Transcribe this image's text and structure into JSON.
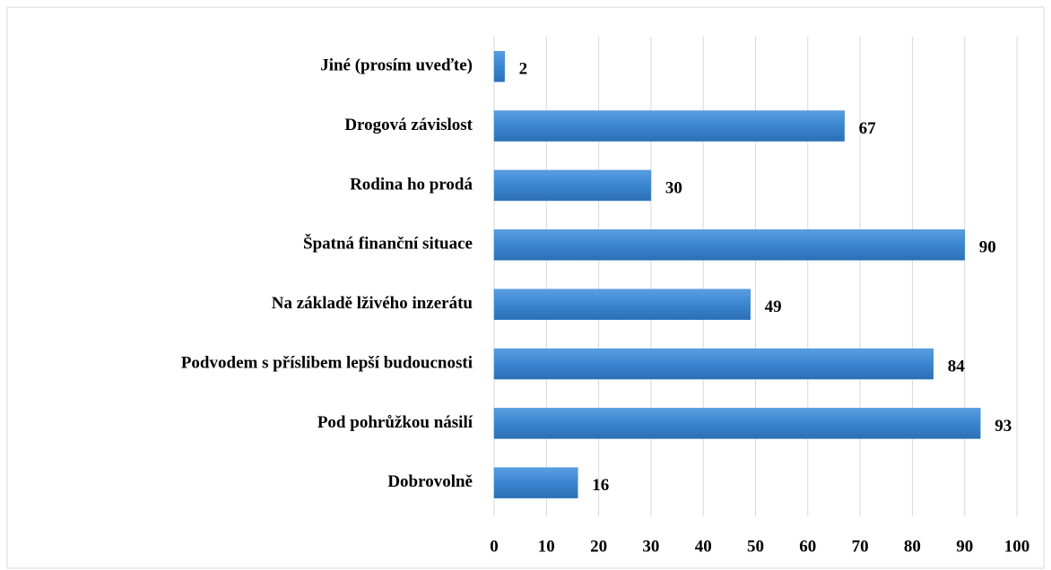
{
  "chart_data": {
    "type": "bar",
    "orientation": "horizontal",
    "categories": [
      "Jiné (prosím uveďte)",
      "Drogová závislost",
      "Rodina ho prodá",
      "Špatná finanční situace",
      "Na základě lživého inzerátu",
      "Podvodem s příslibem lepší budoucnosti",
      "Pod pohrůžkou násilí",
      "Dobrovolně"
    ],
    "values": [
      2,
      67,
      30,
      90,
      49,
      84,
      93,
      16
    ],
    "color": "#3a86d1",
    "xlim": [
      0,
      100
    ],
    "xticks": [
      0,
      10,
      20,
      30,
      40,
      50,
      60,
      70,
      80,
      90,
      100
    ],
    "grid": true
  }
}
